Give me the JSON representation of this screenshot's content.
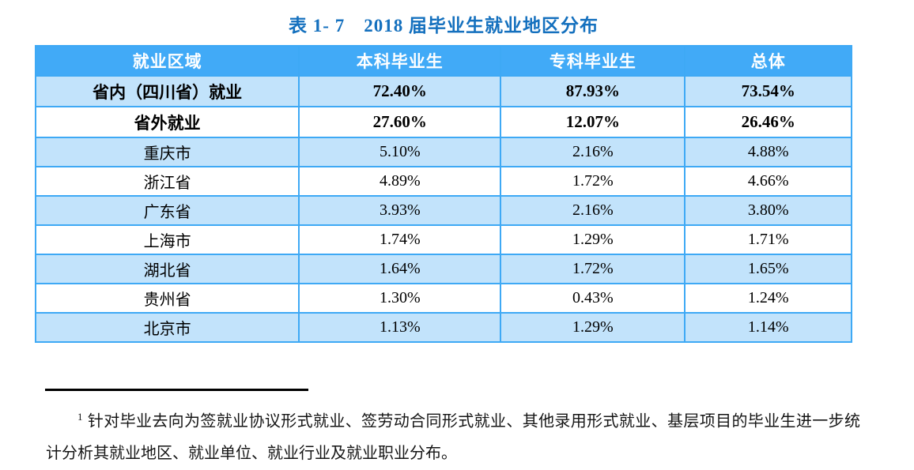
{
  "title": "表 1- 7　2018 届毕业生就业地区分布",
  "table": {
    "headers": [
      "就业区域",
      "本科毕业生",
      "专科毕业生",
      "总体"
    ],
    "rows": [
      {
        "region": "省内（四川省）就业",
        "undergrad": "72.40%",
        "college": "87.93%",
        "overall": "73.54%"
      },
      {
        "region": "省外就业",
        "undergrad": "27.60%",
        "college": "12.07%",
        "overall": "26.46%"
      },
      {
        "region": "重庆市",
        "undergrad": "5.10%",
        "college": "2.16%",
        "overall": "4.88%"
      },
      {
        "region": "浙江省",
        "undergrad": "4.89%",
        "college": "1.72%",
        "overall": "4.66%"
      },
      {
        "region": "广东省",
        "undergrad": "3.93%",
        "college": "2.16%",
        "overall": "3.80%"
      },
      {
        "region": "上海市",
        "undergrad": "1.74%",
        "college": "1.29%",
        "overall": "1.71%"
      },
      {
        "region": "湖北省",
        "undergrad": "1.64%",
        "college": "1.72%",
        "overall": "1.65%"
      },
      {
        "region": "贵州省",
        "undergrad": "1.30%",
        "college": "0.43%",
        "overall": "1.24%"
      },
      {
        "region": "北京市",
        "undergrad": "1.13%",
        "college": "1.29%",
        "overall": "1.14%"
      }
    ]
  },
  "footnote": {
    "marker": "1",
    "text": "针对毕业去向为签就业协议形式就业、签劳动合同形式就业、其他录用形式就业、基层项目的毕业生进一步统计分析其就业地区、就业单位、就业行业及就业职业分布。"
  },
  "colors": {
    "title": "#1470BE",
    "header_bg": "#41AAF7",
    "row_alt_bg": "#C2E3FB",
    "border": "#3EA9F5",
    "header_text": "#FFFFFF"
  }
}
